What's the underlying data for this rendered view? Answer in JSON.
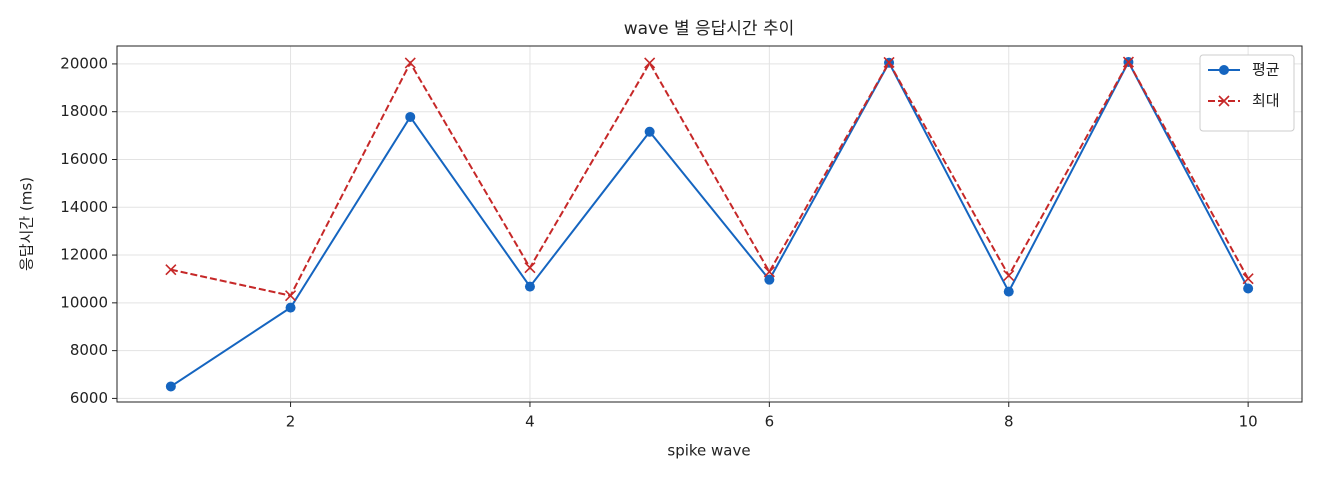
{
  "chart_data": {
    "type": "line",
    "title": "wave 별 응답시간 추이",
    "x_label": "spike wave",
    "y_label": "응답시간 (ms)",
    "x": [
      1,
      2,
      3,
      4,
      5,
      6,
      7,
      8,
      9,
      10
    ],
    "series": [
      {
        "name": "평균",
        "color": "#1565c0",
        "marker": "circle",
        "line_style": "solid",
        "values": [
          6500,
          9800,
          17780,
          10680,
          17160,
          10970,
          20050,
          10470,
          20080,
          10600
        ]
      },
      {
        "name": "최대",
        "color": "#c62828",
        "marker": "x",
        "line_style": "dashed",
        "values": [
          11390,
          10300,
          20040,
          11470,
          20040,
          11300,
          20060,
          11140,
          20080,
          11010
        ]
      }
    ],
    "xlim": [
      0.55,
      10.45
    ],
    "ylim": [
      5850,
      20750
    ],
    "xticks": [
      2,
      4,
      6,
      8,
      10
    ],
    "yticks": [
      6000,
      8000,
      10000,
      12000,
      14000,
      16000,
      18000,
      20000
    ],
    "grid": true,
    "legend": "upper right"
  }
}
